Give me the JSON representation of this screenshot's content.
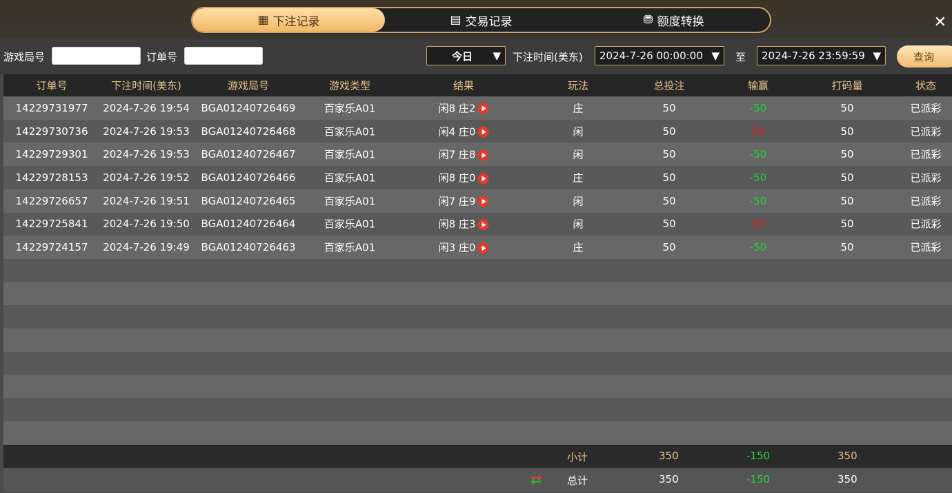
{
  "tabs": [
    {
      "label": "下注记录",
      "icon": "calendar-icon",
      "active": true
    },
    {
      "label": "交易记录",
      "icon": "clipboard-icon"
    },
    {
      "label": "额度转换",
      "icon": "coins-icon"
    }
  ],
  "filter": {
    "round_label": "游戏局号",
    "round_value": "",
    "order_label": "订单号",
    "order_value": "",
    "range": "今日",
    "time_label": "下注时间(美东)",
    "start": "2024-7-26 00:00:00",
    "to": "至",
    "end": "2024-7-26 23:59:59",
    "query": "查询"
  },
  "columns": [
    "订单号",
    "下注时间(美东)",
    "游戏局号",
    "游戏类型",
    "结果",
    "玩法",
    "总投注",
    "输赢",
    "打码量",
    "状态"
  ],
  "rows": [
    [
      "14229731977",
      "2024-7-26 19:54",
      "BGA01240726469",
      "百家乐A01",
      "闲8 庄2",
      "庄",
      "50",
      "-50",
      "50",
      "已派彩"
    ],
    [
      "14229730736",
      "2024-7-26 19:53",
      "BGA01240726468",
      "百家乐A01",
      "闲4 庄0",
      "闲",
      "50",
      "50",
      "50",
      "已派彩"
    ],
    [
      "14229729301",
      "2024-7-26 19:53",
      "BGA01240726467",
      "百家乐A01",
      "闲7 庄8",
      "闲",
      "50",
      "-50",
      "50",
      "已派彩"
    ],
    [
      "14229728153",
      "2024-7-26 19:52",
      "BGA01240726466",
      "百家乐A01",
      "闲8 庄0",
      "庄",
      "50",
      "-50",
      "50",
      "已派彩"
    ],
    [
      "14229726657",
      "2024-7-26 19:51",
      "BGA01240726465",
      "百家乐A01",
      "闲7 庄9",
      "闲",
      "50",
      "-50",
      "50",
      "已派彩"
    ],
    [
      "14229725841",
      "2024-7-26 19:50",
      "BGA01240726464",
      "百家乐A01",
      "闲8 庄3",
      "闲",
      "50",
      "50",
      "50",
      "已派彩"
    ],
    [
      "14229724157",
      "2024-7-26 19:49",
      "BGA01240726463",
      "百家乐A01",
      "闲3 庄0",
      "庄",
      "50",
      "-50",
      "50",
      "已派彩"
    ]
  ],
  "subtotal": {
    "label": "小计",
    "bet": "350",
    "win": "-150",
    "valid": "350"
  },
  "total": {
    "label": "总计",
    "bet": "350",
    "win": "-150",
    "valid": "350"
  },
  "colors": {
    "accent": "#f2b865",
    "loss": "#22d33a",
    "win": "#e31b1b"
  }
}
